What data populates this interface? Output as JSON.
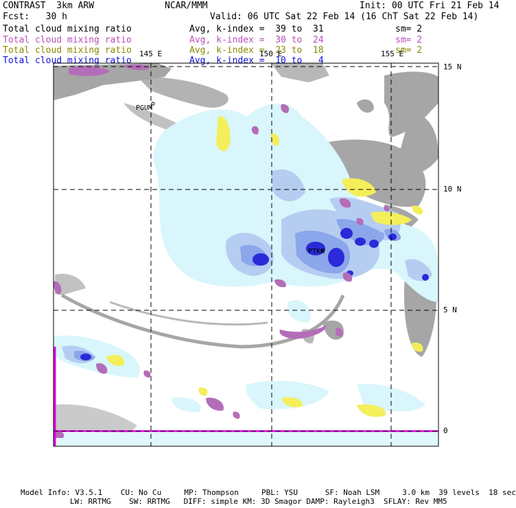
{
  "header": {
    "model": "CONTRAST  3km ARW",
    "center": "NCAR/MMM",
    "init": "Init: 00 UTC Fri 21 Feb 14",
    "fcst": "Fcst:   30 h",
    "valid": "Valid: 06 UTC Sat 22 Feb 14 (16 ChT Sat 22 Feb 14)"
  },
  "legend": [
    {
      "field": "Total cloud mixing ratio",
      "range": "Avg, k-index =  39 to  31",
      "sm": "sm= 2",
      "color": "#000000"
    },
    {
      "field": "Total cloud mixing ratio",
      "range": "Avg, k-index =  30 to  24",
      "sm": "sm= 2",
      "color": "#b84fb8"
    },
    {
      "field": "Total cloud mixing ratio",
      "range": "Avg, k-index =  23 to  18",
      "sm": "sm= 2",
      "color": "#8a8a00"
    },
    {
      "field": "Total cloud mixing ratio",
      "range": "Avg, k-index =  10 to   4",
      "sm": "",
      "color": "#1010e0"
    }
  ],
  "map": {
    "lon_labels": [
      "145 E",
      "150 E",
      "155 E"
    ],
    "lat_labels": [
      "15 N",
      "10 N",
      "5 N",
      "0"
    ],
    "stations": [
      "PGUM",
      "PTKK"
    ]
  },
  "footer": {
    "line1": "Model Info: V3.5.1    CU: No Cu     MP: Thompson     PBL: YSU      SF: Noah LSM     3.0 km  39 levels  18 sec",
    "line2": "LW: RRTMG    SW: RRTMG   DIFF: simple KM: 3D Smagor DAMP: Rayleigh3  SFLAY: Rev MM5"
  },
  "colors": {
    "gray": "#a6a6a6",
    "cyan_light": "#d8f6fb",
    "blue_light": "#b6cdf2",
    "blue_mid": "#8ba6ea",
    "blue_dark": "#2a2ad8",
    "violet": "#b46db8",
    "yellow": "#f4ee5a",
    "magenta": "#e000e0"
  }
}
